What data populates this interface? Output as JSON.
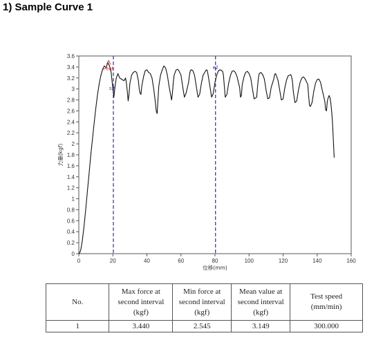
{
  "heading": "1) Sample Curve 1",
  "chart_data": {
    "type": "line",
    "xlabel": "位移(mm)",
    "ylabel": "力量(kgf)",
    "xlim": [
      0,
      160
    ],
    "ylim": [
      0,
      3.6
    ],
    "x_ticks": [
      0,
      20,
      40,
      60,
      80,
      100,
      120,
      140,
      160
    ],
    "y_ticks": [
      0,
      0.2,
      0.4,
      0.6,
      0.8,
      1,
      1.2,
      1.4,
      1.6,
      1.8,
      2,
      2.2,
      2.4,
      2.6,
      2.8,
      3,
      3.2,
      3.4,
      3.6
    ],
    "grid": false,
    "series": [
      {
        "color": "#111111",
        "x": [
          0,
          0.6,
          1.2,
          2,
          3,
          4,
          5,
          6,
          7,
          8,
          9,
          10,
          11,
          12,
          13,
          14,
          15,
          16,
          17,
          18,
          19,
          20,
          20.6,
          21.3,
          22,
          23,
          24,
          25,
          26.5,
          27.5,
          28,
          28.5,
          29,
          29.5,
          30,
          31,
          32,
          33,
          34,
          35,
          35.5,
          36,
          36.5,
          37,
          38,
          39,
          40,
          41,
          42,
          43,
          44,
          45,
          45.5,
          46,
          46.5,
          47,
          48,
          49,
          50,
          51,
          52,
          53,
          54.5,
          55,
          55.5,
          56,
          57,
          58,
          59,
          60,
          61,
          62,
          63,
          64.5,
          65,
          65.5,
          66,
          67,
          68,
          69,
          70,
          71,
          72,
          73,
          74.5,
          75,
          75.5,
          76,
          77,
          78,
          79,
          80,
          81,
          82,
          83,
          84.5,
          85,
          85.5,
          86,
          87,
          88,
          89,
          90,
          91,
          92,
          93,
          94.5,
          95,
          95.5,
          96,
          97,
          98,
          99,
          100,
          101,
          102,
          103,
          104.5,
          105,
          105.5,
          106,
          107,
          108,
          109,
          110,
          111,
          112,
          113,
          114.5,
          115,
          115.5,
          116,
          117,
          118,
          119,
          120,
          121,
          122,
          123,
          124.5,
          125,
          125.5,
          126,
          127,
          128,
          129,
          130,
          131,
          132,
          133,
          134.5,
          135,
          135.5,
          136,
          137,
          138,
          139,
          140,
          141,
          142,
          143,
          144.5,
          145,
          145.5,
          146,
          146.5,
          147,
          147.5,
          148,
          148.5,
          149,
          149.5,
          150
        ],
        "y": [
          0,
          0.02,
          0.08,
          0.22,
          0.48,
          0.78,
          1.12,
          1.45,
          1.78,
          2.08,
          2.38,
          2.65,
          2.9,
          3.1,
          3.25,
          3.36,
          3.42,
          3.38,
          3.48,
          3.42,
          3.3,
          3.0,
          2.85,
          3.05,
          3.2,
          3.28,
          3.2,
          3.18,
          3.15,
          3.2,
          3.1,
          2.95,
          2.78,
          2.9,
          3.1,
          3.25,
          3.3,
          3.32,
          3.3,
          3.15,
          3.0,
          2.92,
          2.9,
          3.05,
          3.22,
          3.33,
          3.35,
          3.3,
          3.28,
          3.2,
          3.0,
          2.75,
          2.6,
          2.55,
          2.8,
          3.05,
          3.25,
          3.35,
          3.42,
          3.38,
          3.25,
          3.05,
          2.8,
          2.92,
          3.12,
          3.25,
          3.34,
          3.36,
          3.32,
          3.25,
          3.05,
          2.85,
          2.92,
          3.12,
          3.25,
          3.33,
          3.35,
          3.33,
          3.25,
          3.05,
          2.85,
          2.9,
          3.1,
          3.25,
          3.33,
          3.35,
          3.33,
          3.25,
          3.05,
          2.85,
          2.92,
          3.12,
          3.25,
          3.33,
          3.35,
          3.32,
          3.24,
          3.05,
          2.85,
          2.9,
          3.1,
          3.24,
          3.32,
          3.33,
          3.3,
          3.22,
          3.02,
          2.85,
          2.88,
          3.08,
          3.22,
          3.3,
          3.32,
          3.28,
          3.2,
          3.0,
          2.82,
          2.85,
          3.05,
          3.2,
          3.28,
          3.3,
          3.26,
          3.18,
          2.98,
          2.82,
          2.84,
          3.03,
          3.18,
          3.26,
          3.28,
          3.25,
          3.16,
          2.98,
          2.8,
          2.82,
          3.02,
          3.16,
          3.24,
          3.26,
          3.22,
          3.14,
          2.95,
          2.75,
          2.78,
          2.98,
          3.12,
          3.2,
          3.22,
          3.18,
          3.08,
          2.88,
          2.7,
          2.68,
          2.75,
          2.95,
          3.1,
          3.17,
          3.18,
          3.12,
          2.98,
          2.78,
          2.62,
          2.6,
          2.78,
          2.84,
          2.88,
          2.85,
          2.75,
          2.6,
          2.4,
          2.1,
          1.75
        ]
      }
    ],
    "markers": [
      {
        "label": "Peak",
        "x": 17.5,
        "y": 3.48,
        "color": "#cc3333"
      },
      {
        "label": "s2",
        "x": 20.3,
        "y": 3.02,
        "color": "#3333aa"
      }
    ],
    "vlines": [
      {
        "x": 20.3,
        "color": "#2a2aa8",
        "style": "dashed"
      },
      {
        "x": 80.3,
        "color": "#2a2aa8",
        "style": "dashed",
        "label": "e2"
      }
    ]
  },
  "table": {
    "headers": [
      [
        "No."
      ],
      [
        "Max force at",
        "second interval",
        "(kgf)"
      ],
      [
        "Min force at",
        "second interval",
        "(kgf)"
      ],
      [
        "Mean value at",
        "second interval",
        "(kgf)"
      ],
      [
        "Test speed",
        "(mm/min)"
      ]
    ],
    "rows": [
      [
        "1",
        "3.440",
        "2.545",
        "3.149",
        "300.000"
      ]
    ]
  }
}
